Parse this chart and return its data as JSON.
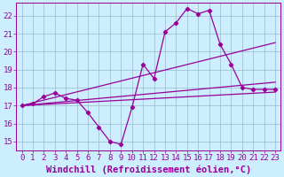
{
  "xlabel": "Windchill (Refroidissement éolien,°C)",
  "background_color": "#cceeff",
  "line_color": "#990099",
  "grid_color": "#99bbcc",
  "xlim": [
    -0.5,
    23.5
  ],
  "ylim": [
    14.5,
    22.7
  ],
  "xticks": [
    0,
    1,
    2,
    3,
    4,
    5,
    6,
    7,
    8,
    9,
    10,
    11,
    12,
    13,
    14,
    15,
    16,
    17,
    18,
    19,
    20,
    21,
    22,
    23
  ],
  "yticks": [
    15,
    16,
    17,
    18,
    19,
    20,
    21,
    22
  ],
  "series1_x": [
    0,
    1,
    2,
    3,
    4,
    5,
    6,
    7,
    8,
    9,
    10,
    11,
    12,
    13,
    14,
    15,
    16,
    17,
    18,
    19,
    20,
    21,
    22,
    23
  ],
  "series1_y": [
    17.0,
    17.1,
    17.5,
    17.7,
    17.4,
    17.3,
    16.6,
    15.8,
    15.0,
    14.85,
    16.9,
    19.3,
    18.5,
    21.1,
    21.6,
    22.4,
    22.1,
    22.3,
    20.4,
    19.3,
    18.0,
    17.9,
    17.9,
    17.9
  ],
  "line1_x": [
    0,
    23
  ],
  "line1_y": [
    17.0,
    17.75
  ],
  "line2_x": [
    0,
    23
  ],
  "line2_y": [
    17.0,
    18.3
  ],
  "line3_x": [
    0,
    23
  ],
  "line3_y": [
    17.0,
    20.5
  ],
  "font_family": "monospace",
  "tick_fontsize": 6.5,
  "xlabel_fontsize": 7.5
}
